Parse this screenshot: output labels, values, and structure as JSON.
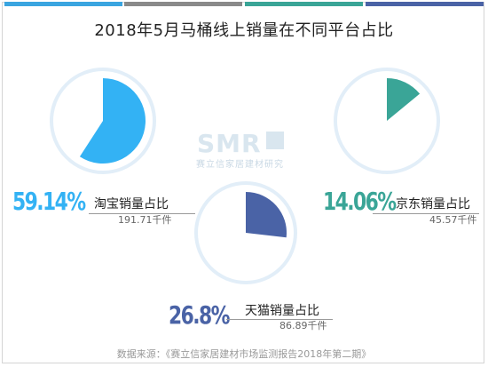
{
  "title": "2018年5月马桶线上销量在不同平台占比",
  "source": "数据来源：《赛立信家居建材市场监测报告2018年第二期》",
  "watermark": {
    "logo": "SMR",
    "text": "赛立信家居建材研究"
  },
  "colors": {
    "taobao": "#33b2f4",
    "jingdong": "#3aa597",
    "tmall": "#4a63a6",
    "ring": "#e2eef8",
    "bars": [
      "#3aa5e0",
      "#8a8a8a",
      "#3aa597",
      "#4a63a6"
    ]
  },
  "chart_data": {
    "type": "pie",
    "title": "2018年5月马桶线上销量在不同平台占比",
    "series": [
      {
        "name": "淘宝销量占比",
        "percent": 59.14,
        "percent_label": "59.14%",
        "value": 191.71,
        "value_label": "191.71千件"
      },
      {
        "name": "京东销量占比",
        "percent": 14.06,
        "percent_label": "14.06%",
        "value": 45.57,
        "value_label": "45.57千件"
      },
      {
        "name": "天猫销量占比",
        "percent": 26.8,
        "percent_label": "26.8%",
        "value": 86.89,
        "value_label": "86.89千件"
      }
    ]
  }
}
